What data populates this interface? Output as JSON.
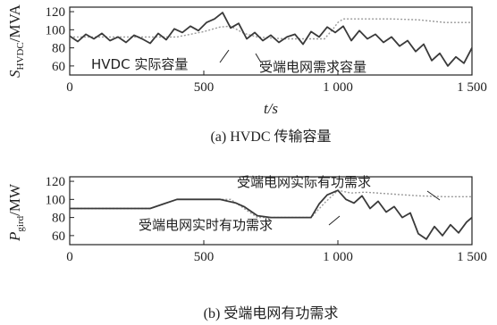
{
  "chart_data": [
    {
      "id": "a",
      "type": "line",
      "caption": "(a) HVDC 传输容量",
      "xlabel": "t/s",
      "ylabel_main": "S",
      "ylabel_sub": "HVDC",
      "ylabel_unit": "/MVA",
      "xlim": [
        0,
        1500
      ],
      "ylim": [
        50,
        125
      ],
      "xticks": [
        0,
        500,
        1000,
        1500
      ],
      "xtick_labels": [
        "0",
        "500",
        "1 000",
        "1 500"
      ],
      "yticks": [
        60,
        80,
        100,
        120
      ],
      "ytick_labels": [
        "60",
        "80",
        "100",
        "120"
      ],
      "annotations": [
        "HVDC 实际容量",
        "受端电网需求容量"
      ],
      "series": [
        {
          "role": "actual",
          "x": [
            0,
            30,
            60,
            90,
            120,
            150,
            180,
            210,
            240,
            270,
            300,
            330,
            360,
            390,
            420,
            450,
            480,
            510,
            540,
            570,
            600,
            630,
            660,
            690,
            720,
            750,
            780,
            810,
            840,
            870,
            900,
            930,
            960,
            990,
            1020,
            1050,
            1080,
            1110,
            1140,
            1170,
            1200,
            1230,
            1260,
            1290,
            1320,
            1350,
            1380,
            1410,
            1440,
            1470,
            1500
          ],
          "y": [
            93,
            87,
            95,
            90,
            96,
            88,
            92,
            86,
            94,
            90,
            85,
            96,
            89,
            101,
            97,
            104,
            99,
            108,
            112,
            119,
            102,
            107,
            90,
            97,
            88,
            94,
            86,
            92,
            95,
            84,
            98,
            92,
            103,
            97,
            104,
            88,
            99,
            90,
            95,
            86,
            92,
            82,
            88,
            76,
            84,
            66,
            74,
            60,
            70,
            63,
            80
          ]
        },
        {
          "role": "demand",
          "x": [
            0,
            100,
            200,
            300,
            400,
            500,
            560,
            600,
            650,
            700,
            800,
            900,
            950,
            980,
            1000,
            1020,
            1100,
            1200,
            1300,
            1400,
            1450,
            1500
          ],
          "y": [
            92,
            92,
            92,
            92,
            92,
            98,
            103,
            104,
            96,
            92,
            90,
            90,
            90,
            100,
            108,
            112,
            112,
            112,
            111,
            108,
            108,
            108
          ]
        }
      ]
    },
    {
      "id": "b",
      "type": "line",
      "caption": "(b) 受端电网有功需求",
      "xlabel": "",
      "ylabel_main": "P",
      "ylabel_sub": "gird",
      "ylabel_unit": "/MW",
      "xlim": [
        0,
        1500
      ],
      "ylim": [
        50,
        125
      ],
      "xticks": [
        0,
        500,
        1000,
        1500
      ],
      "xtick_labels": [
        "0",
        "500",
        "1 000",
        "1 500"
      ],
      "yticks": [
        60,
        80,
        100,
        120
      ],
      "ytick_labels": [
        "60",
        "80",
        "100",
        "120"
      ],
      "annotations": [
        "受端电网实际有功需求",
        "受端电网实时有功需求"
      ],
      "series": [
        {
          "role": "actual",
          "x": [
            0,
            100,
            200,
            300,
            350,
            400,
            500,
            560,
            620,
            650,
            700,
            750,
            800,
            850,
            900,
            930,
            960,
            1000,
            1030,
            1060,
            1090,
            1120,
            1150,
            1180,
            1210,
            1240,
            1270,
            1300,
            1330,
            1360,
            1390,
            1420,
            1450,
            1480,
            1500
          ],
          "y": [
            90,
            90,
            90,
            90,
            95,
            100,
            100,
            100,
            96,
            92,
            82,
            80,
            80,
            80,
            80,
            95,
            105,
            110,
            100,
            96,
            104,
            90,
            98,
            86,
            92,
            80,
            85,
            62,
            56,
            70,
            60,
            72,
            63,
            75,
            80
          ]
        },
        {
          "role": "demand",
          "x": [
            0,
            100,
            200,
            300,
            400,
            500,
            600,
            700,
            800,
            900,
            950,
            1000,
            1050,
            1100,
            1200,
            1300,
            1400,
            1450,
            1500
          ],
          "y": [
            90,
            90,
            90,
            90,
            100,
            100,
            100,
            80,
            80,
            80,
            96,
            110,
            107,
            108,
            106,
            104,
            103,
            103,
            103
          ]
        }
      ]
    }
  ]
}
